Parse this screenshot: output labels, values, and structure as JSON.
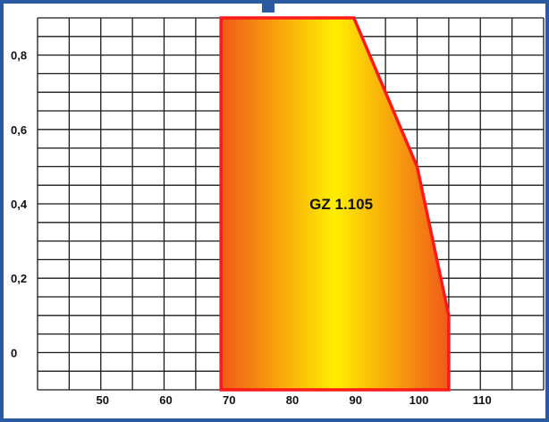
{
  "chart_data": {
    "type": "area",
    "title": "",
    "xlabel": "",
    "ylabel": "",
    "xlim": [
      40,
      120
    ],
    "ylim": [
      -0.1,
      0.9
    ],
    "x_ticks": [
      50,
      60,
      70,
      80,
      90,
      100,
      110
    ],
    "x_tick_labels": [
      "50",
      "60",
      "70",
      "80",
      "90",
      "100",
      "110"
    ],
    "y_ticks": [
      0,
      0.2,
      0.4,
      0.6,
      0.8
    ],
    "y_tick_labels": [
      "0",
      "0,2",
      "0,4",
      "0,6",
      "0,8"
    ],
    "grid": true,
    "region": {
      "label": "GZ 1.105",
      "boundary": [
        {
          "x": 69,
          "y": -0.1
        },
        {
          "x": 69,
          "y": 0.9
        },
        {
          "x": 90,
          "y": 0.9
        },
        {
          "x": 95,
          "y": 0.7
        },
        {
          "x": 100,
          "y": 0.5
        },
        {
          "x": 105,
          "y": 0.1
        },
        {
          "x": 105,
          "y": -0.1
        }
      ],
      "outline_color": "#ff1a1a",
      "fill_gradient": [
        "#f05a1a",
        "#ffee00",
        "#f05a1a"
      ]
    }
  },
  "frame": {
    "border_color": "#2c5aa0"
  }
}
